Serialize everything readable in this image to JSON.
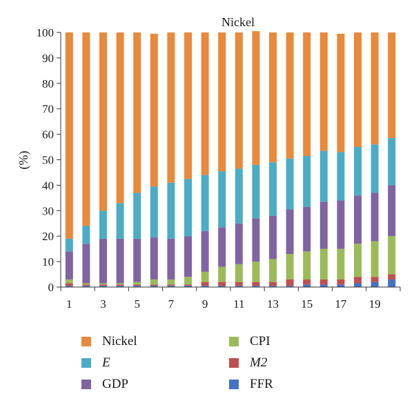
{
  "chart_data": {
    "type": "bar",
    "stacked": true,
    "title": "Nickel",
    "ylabel": "(%)",
    "xlabel": "",
    "ylim": [
      0,
      100
    ],
    "yticks": [
      0,
      10,
      20,
      30,
      40,
      50,
      60,
      70,
      80,
      90,
      100
    ],
    "categories": [
      1,
      2,
      3,
      4,
      5,
      6,
      7,
      8,
      9,
      10,
      11,
      12,
      13,
      14,
      15,
      16,
      17,
      18,
      19,
      20
    ],
    "xtick_labels": [
      "1",
      "3",
      "5",
      "7",
      "9",
      "11",
      "13",
      "15",
      "17",
      "19"
    ],
    "grid": false,
    "legend_position": "bottom",
    "series": [
      {
        "name": "FFR",
        "color": "#4472C4",
        "values": [
          0.5,
          0.5,
          0.5,
          0.5,
          0.5,
          0.5,
          0.5,
          0.5,
          0.5,
          0.5,
          0.5,
          0.5,
          0.5,
          0.5,
          1,
          1,
          1,
          1.5,
          2,
          3
        ]
      },
      {
        "name": "M2",
        "color": "#C0504D",
        "values": [
          1,
          0.5,
          0.5,
          0.5,
          0.5,
          0.5,
          0.5,
          0.5,
          1.5,
          1.5,
          1.5,
          1.5,
          1.5,
          2.5,
          2,
          2,
          2,
          2.5,
          2,
          2
        ]
      },
      {
        "name": "CPI",
        "color": "#9BBB59",
        "values": [
          1.5,
          0.5,
          0.5,
          0.5,
          1,
          2,
          2,
          3,
          4,
          6,
          7,
          8,
          9,
          10,
          11,
          12,
          12,
          13,
          14,
          15
        ]
      },
      {
        "name": "GDP",
        "color": "#8064A2",
        "values": [
          11,
          15.5,
          17.5,
          17.5,
          17,
          16.5,
          16,
          16,
          16,
          15.5,
          16,
          17,
          17,
          17.5,
          17.5,
          18.5,
          19,
          19,
          19,
          20
        ]
      },
      {
        "name": "E",
        "color": "#4BACC6",
        "values": [
          5,
          7,
          11,
          14,
          18,
          20,
          22,
          22.5,
          22,
          22,
          21.5,
          21,
          21,
          20,
          20,
          20,
          19,
          19,
          19,
          18.5
        ]
      },
      {
        "name": "Nickel",
        "color": "#E8893B",
        "values": [
          81,
          76,
          70,
          67,
          63,
          60,
          59,
          57.5,
          56,
          54.5,
          53.5,
          52.5,
          51,
          49.5,
          48.5,
          46.5,
          46.5,
          45,
          44,
          41.5
        ]
      }
    ]
  },
  "legend": {
    "items": [
      {
        "label": "Nickel",
        "color": "#E8893B",
        "italic": false
      },
      {
        "label": "CPI",
        "color": "#9BBB59",
        "italic": false
      },
      {
        "label": "E",
        "color": "#4BACC6",
        "italic": true
      },
      {
        "label": "M2",
        "color": "#C0504D",
        "italic": true
      },
      {
        "label": "GDP",
        "color": "#8064A2",
        "italic": false
      },
      {
        "label": "FFR",
        "color": "#4472C4",
        "italic": false
      }
    ]
  }
}
